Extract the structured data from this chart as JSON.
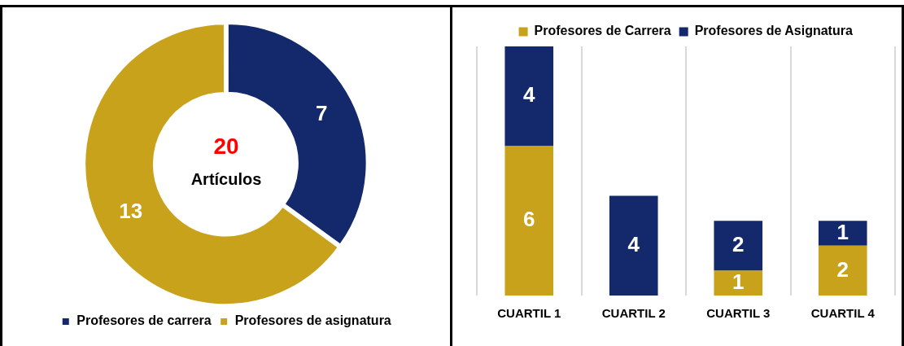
{
  "chart_data": [
    {
      "type": "donut",
      "categories": [
        "Profesores de carrera",
        "Profesores de asignatura"
      ],
      "values": [
        7,
        13
      ],
      "colors": [
        "#13296b",
        "#c9a21c"
      ],
      "data_labels": true,
      "legend": "bottom",
      "annotations": [
        "20",
        "Artículos"
      ]
    },
    {
      "type": "bar",
      "stacked": true,
      "grid": "x",
      "legend": "top",
      "tick_labels": "x",
      "data_labels": true,
      "categories": [
        "CUARTIL 1",
        "CUARTIL 2",
        "CUARTIL 3",
        "CUARTIL 4"
      ],
      "series": [
        {
          "name": "Profesores de Carrera",
          "color": "#c9a21c",
          "values": [
            6,
            null,
            1,
            2
          ]
        },
        {
          "name": "Profesores de Asignatura",
          "color": "#13296b",
          "values": [
            4,
            4,
            2,
            1
          ]
        }
      ]
    }
  ]
}
